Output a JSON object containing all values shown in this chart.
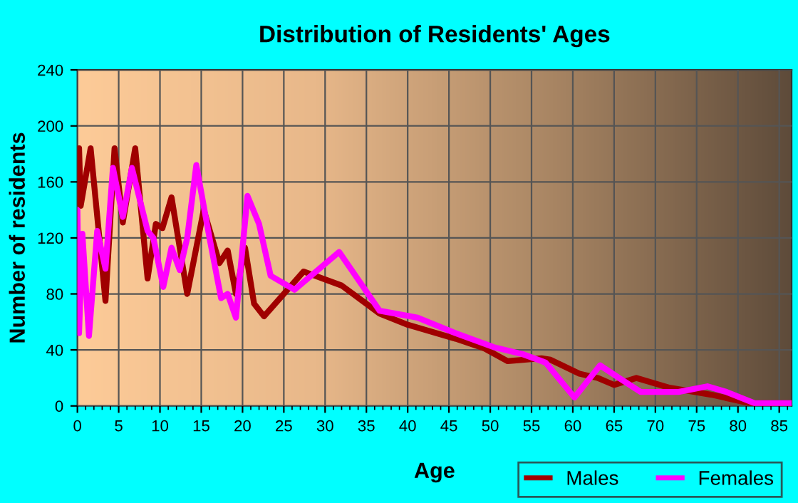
{
  "chart_data": {
    "type": "line",
    "title": "Distribution of Residents' Ages",
    "xlabel": "Age",
    "ylabel": "Number of residents",
    "xlim": [
      0,
      86.5
    ],
    "xticks": [
      0,
      5,
      10,
      15,
      20,
      25,
      30,
      35,
      40,
      45,
      50,
      55,
      60,
      65,
      70,
      75,
      80,
      85
    ],
    "ylim": [
      0,
      240
    ],
    "yticks": [
      0,
      40,
      80,
      120,
      160,
      200,
      240
    ],
    "grid": true,
    "legend": "bottom right",
    "marker": "none",
    "line_style": "solid",
    "series": [
      {
        "name": "Males",
        "color": "#a00000",
        "x": [
          0,
          0.2,
          0.4,
          1.6,
          3.4,
          4.5,
          5.5,
          7,
          8.5,
          9.5,
          10.3,
          11.4,
          13.3,
          15.3,
          17.2,
          18.2,
          19.2,
          20.3,
          21.4,
          22.6,
          25,
          27.4,
          32,
          36.6,
          40,
          45.8,
          49.3,
          52.1,
          56.2,
          57.3,
          60.8,
          63,
          65,
          67.7,
          71.7,
          76.8,
          81.4,
          86.5
        ],
        "values": [
          145,
          184,
          143,
          184,
          75,
          184,
          131,
          184,
          91,
          130,
          127,
          149,
          80,
          140,
          102,
          111,
          80,
          113,
          73,
          64,
          80,
          96,
          86,
          66,
          58,
          48,
          41,
          32,
          34,
          33,
          23,
          20,
          15,
          20,
          13,
          8,
          2,
          2
        ]
      },
      {
        "name": "Females",
        "color": "#ff00ff",
        "x": [
          0,
          0.2,
          0.6,
          1.4,
          2.4,
          3.4,
          4.3,
          5.5,
          6.6,
          8.5,
          9.2,
          10.4,
          11.4,
          12.4,
          13.3,
          14.4,
          16,
          17.4,
          18.2,
          19.2,
          20.6,
          22,
          23.4,
          26.3,
          31.7,
          36.6,
          41.2,
          45.8,
          50.4,
          53.9,
          56.7,
          60.2,
          63.3,
          65.6,
          68.2,
          72.8,
          76.3,
          78.6,
          82,
          86.5
        ],
        "values": [
          140,
          52,
          123,
          50,
          125,
          98,
          170,
          135,
          170,
          125,
          120,
          85,
          113,
          97,
          120,
          172,
          120,
          77,
          80,
          63,
          150,
          130,
          93,
          83,
          110,
          68,
          63,
          52,
          42,
          37,
          31,
          6,
          29,
          20,
          10,
          10,
          14,
          10,
          2,
          2
        ]
      }
    ]
  }
}
